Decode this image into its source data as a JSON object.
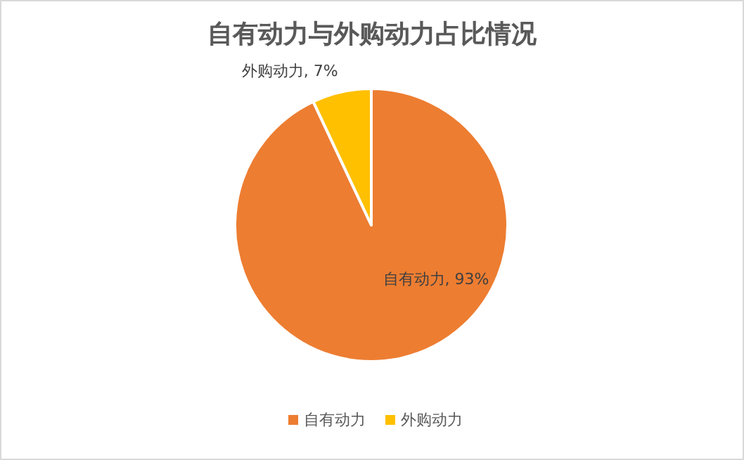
{
  "chart_data": {
    "type": "pie",
    "title": "自有动力与外购动力占比情况",
    "categories": [
      "自有动力",
      "外购动力"
    ],
    "values": [
      93,
      7
    ],
    "colors": [
      "#ed7d31",
      "#ffc000"
    ],
    "value_labels": [
      "自有动力, 93%",
      "外购动力, 7%"
    ],
    "legend": "bottom"
  }
}
